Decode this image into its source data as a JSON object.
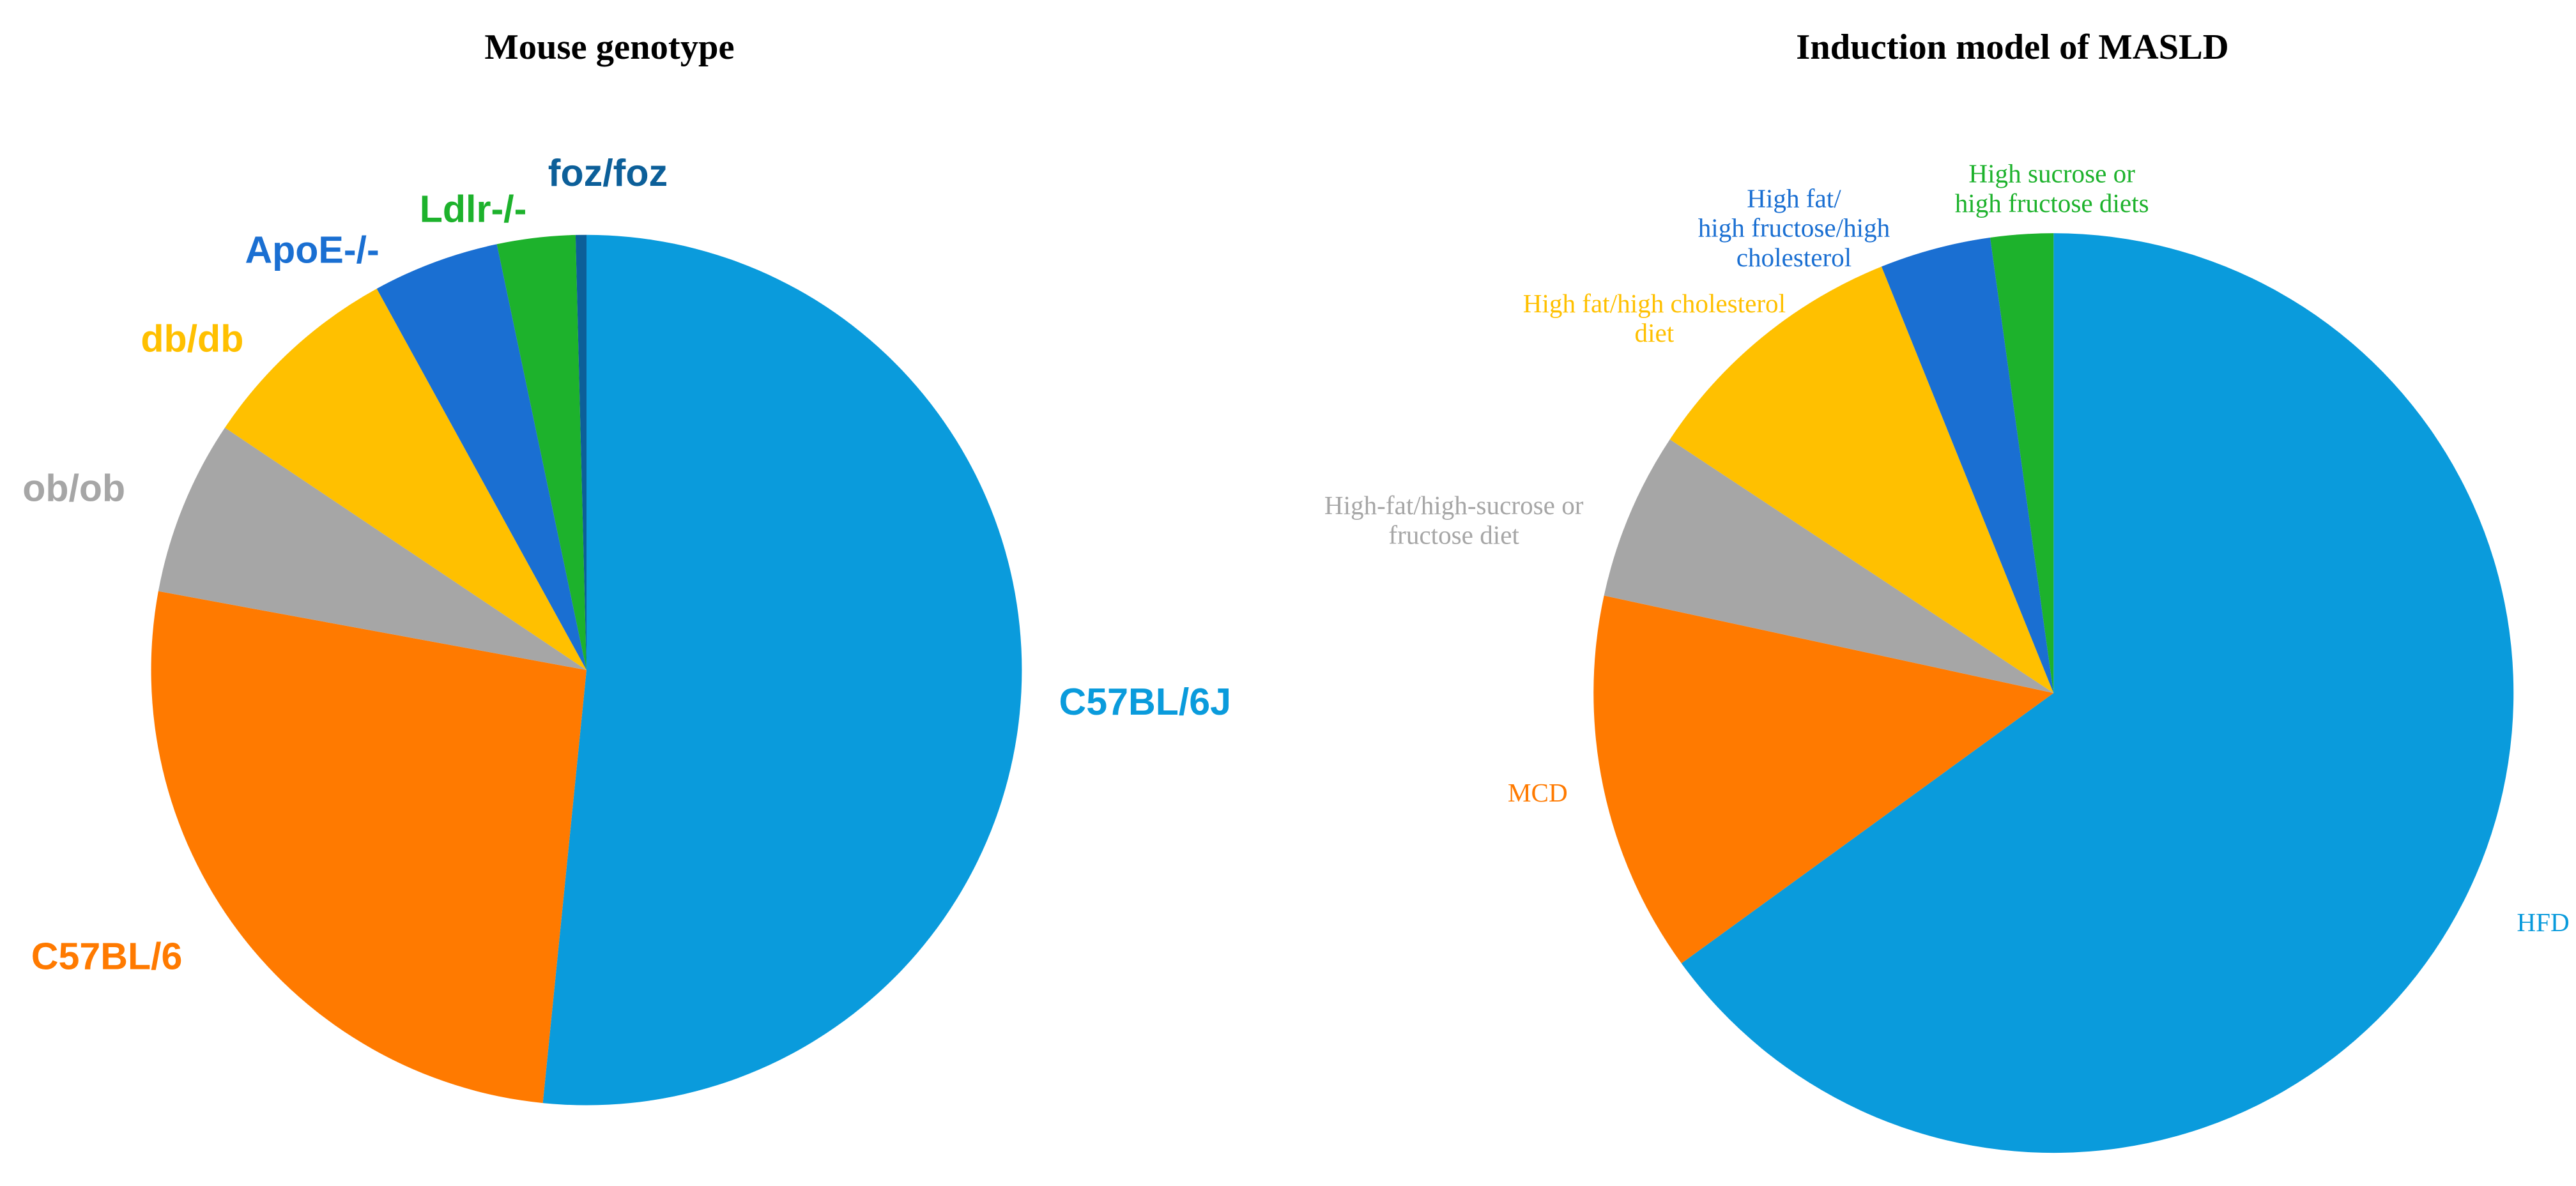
{
  "chart_data": [
    {
      "type": "pie",
      "title": "Mouse genotype",
      "categories": [
        "C57BL/6J",
        "C57BL/6",
        "ob/ob",
        "db/db",
        "ApoE-/-",
        "Ldlr-/-",
        "foz/foz"
      ],
      "values": [
        51.6,
        26.3,
        6.5,
        7.6,
        4.7,
        2.9,
        0.4
      ],
      "colors": [
        "#0a9bdc",
        "#ff7a00",
        "#a6a6a6",
        "#ffc000",
        "#1a6fd2",
        "#1db22c",
        "#0c5f99"
      ]
    },
    {
      "type": "pie",
      "title": "Induction model of MASLD",
      "categories": [
        "HFD",
        "MCD",
        "High-fat/high-sucrose or\nfructose diet",
        "High fat/high cholesterol\ndiet",
        "High fat/\nhigh fructose/high\ncholesterol",
        "High sucrose or\nhigh fructose diets"
      ],
      "values": [
        65.0,
        13.4,
        5.9,
        9.6,
        3.9,
        2.2
      ],
      "colors": [
        "#0a9bdc",
        "#ff7a00",
        "#a6a6a6",
        "#ffc000",
        "#1a6fd2",
        "#1db22c"
      ]
    }
  ]
}
